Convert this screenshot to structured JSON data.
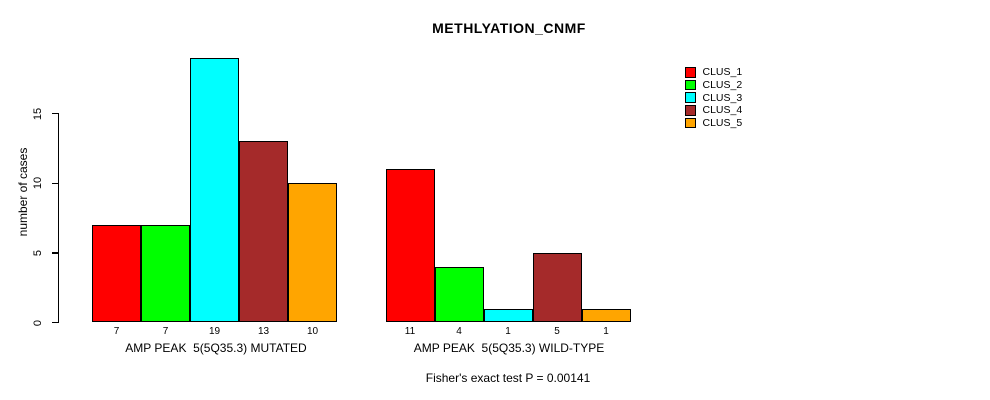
{
  "chart_data": {
    "type": "bar",
    "title": "METHLYATION_CNMF",
    "ylabel": "number of cases",
    "annotation": "Fisher's exact test P = 0.00141",
    "yticks": [
      0,
      5,
      10,
      15
    ],
    "ylim": [
      0,
      19
    ],
    "grid": false,
    "legend_position": "right",
    "series": [
      {
        "name": "CLUS_1",
        "color": "#FF0000"
      },
      {
        "name": "CLUS_2",
        "color": "#00FF00"
      },
      {
        "name": "CLUS_3",
        "color": "#00FFFF"
      },
      {
        "name": "CLUS_4",
        "color": "#A52A2A"
      },
      {
        "name": "CLUS_5",
        "color": "#FFA500"
      }
    ],
    "groups": [
      {
        "label": "AMP PEAK  5(5Q35.3) MUTATED",
        "values": [
          7,
          7,
          19,
          13,
          10
        ]
      },
      {
        "label": "AMP PEAK  5(5Q35.3) WILD-TYPE",
        "values": [
          11,
          4,
          1,
          5,
          1
        ]
      }
    ]
  }
}
